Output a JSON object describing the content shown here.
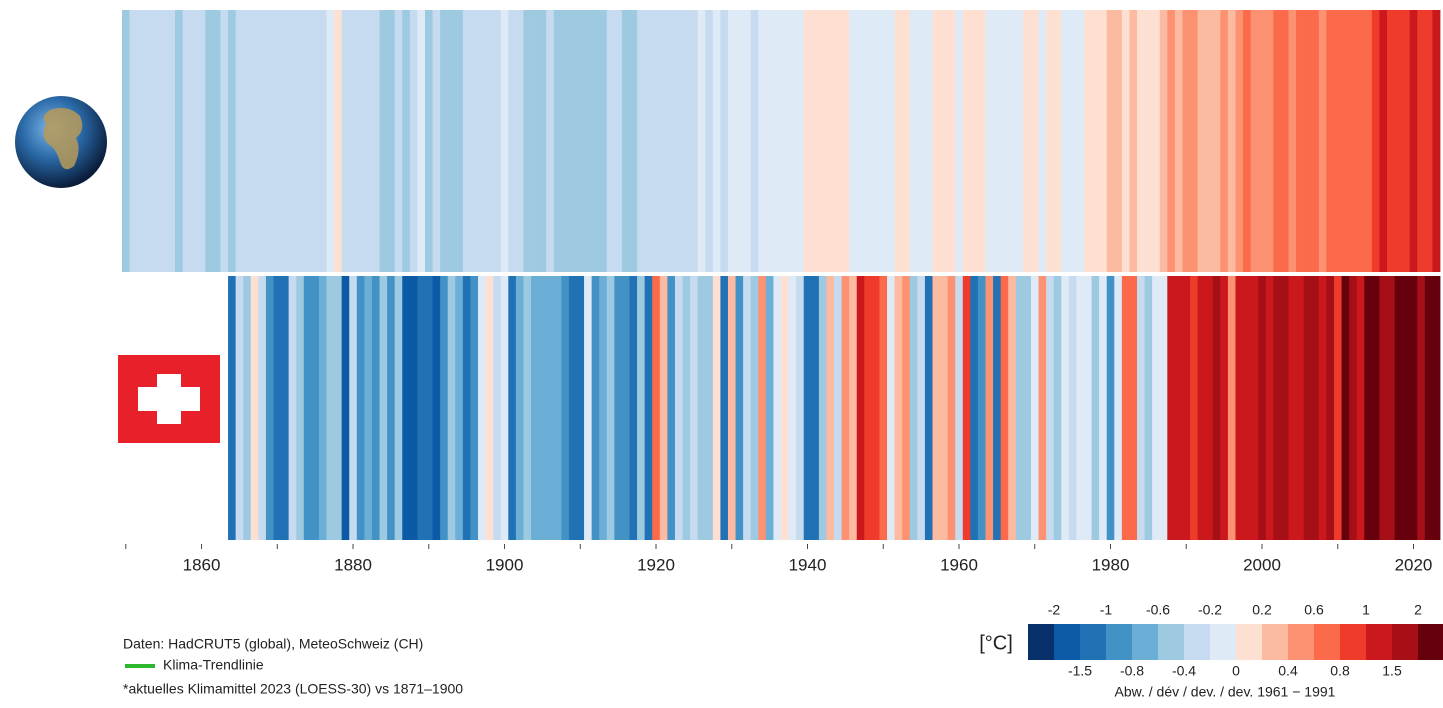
{
  "chart_data": {
    "type": "stripes",
    "xlim": [
      1849.5,
      2023.5
    ],
    "xticks": [
      1860,
      1880,
      1900,
      1920,
      1940,
      1960,
      1980,
      2000,
      2020
    ],
    "xminor_ticks": [
      1850,
      1870,
      1890,
      1910,
      1930,
      1950,
      1970,
      1990,
      2010
    ],
    "series": [
      {
        "x": [
          1850,
          1851,
          1852,
          1853,
          1854,
          1855,
          1856,
          1857,
          1858,
          1859,
          1860,
          1861,
          1862,
          1863,
          1864,
          1865,
          1866,
          1867,
          1868,
          1869,
          1870,
          1871,
          1872,
          1873,
          1874,
          1875,
          1876,
          1877,
          1878,
          1879,
          1880,
          1881,
          1882,
          1883,
          1884,
          1885,
          1886,
          1887,
          1888,
          1889,
          1890,
          1891,
          1892,
          1893,
          1894,
          1895,
          1896,
          1897,
          1898,
          1899,
          1900,
          1901,
          1902,
          1903,
          1904,
          1905,
          1906,
          1907,
          1908,
          1909,
          1910,
          1911,
          1912,
          1913,
          1914,
          1915,
          1916,
          1917,
          1918,
          1919,
          1920,
          1921,
          1922,
          1923,
          1924,
          1925,
          1926,
          1927,
          1928,
          1929,
          1930,
          1931,
          1932,
          1933,
          1934,
          1935,
          1936,
          1937,
          1938,
          1939,
          1940,
          1941,
          1942,
          1943,
          1944,
          1945,
          1946,
          1947,
          1948,
          1949,
          1950,
          1951,
          1952,
          1953,
          1954,
          1955,
          1956,
          1957,
          1958,
          1959,
          1960,
          1961,
          1962,
          1963,
          1964,
          1965,
          1966,
          1967,
          1968,
          1969,
          1970,
          1971,
          1972,
          1973,
          1974,
          1975,
          1976,
          1977,
          1978,
          1979,
          1980,
          1981,
          1982,
          1983,
          1984,
          1985,
          1986,
          1987,
          1988,
          1989,
          1990,
          1991,
          1992,
          1993,
          1994,
          1995,
          1996,
          1997,
          1998,
          1999,
          2000,
          2001,
          2002,
          2003,
          2004,
          2005,
          2006,
          2007,
          2008,
          2009,
          2010,
          2011,
          2012,
          2013,
          2014,
          2015,
          2016,
          2017,
          2018,
          2019,
          2020,
          2021,
          2022,
          2023
        ],
        "values": [
          -0.42,
          -0.28,
          -0.27,
          -0.29,
          -0.3,
          -0.29,
          -0.38,
          -0.48,
          -0.39,
          -0.32,
          -0.37,
          -0.42,
          -0.52,
          -0.34,
          -0.5,
          -0.32,
          -0.29,
          -0.31,
          -0.3,
          -0.29,
          -0.29,
          -0.33,
          -0.26,
          -0.29,
          -0.36,
          -0.4,
          -0.38,
          -0.09,
          0.02,
          -0.25,
          -0.28,
          -0.21,
          -0.25,
          -0.32,
          -0.42,
          -0.41,
          -0.38,
          -0.43,
          -0.31,
          -0.2,
          -0.43,
          -0.39,
          -0.47,
          -0.48,
          -0.43,
          -0.37,
          -0.22,
          -0.23,
          -0.4,
          -0.3,
          -0.2,
          -0.26,
          -0.38,
          -0.47,
          -0.55,
          -0.41,
          -0.34,
          -0.51,
          -0.55,
          -0.56,
          -0.53,
          -0.56,
          -0.5,
          -0.48,
          -0.29,
          -0.21,
          -0.43,
          -0.5,
          -0.38,
          -0.32,
          -0.32,
          -0.25,
          -0.33,
          -0.31,
          -0.31,
          -0.24,
          -0.12,
          -0.22,
          -0.2,
          -0.36,
          -0.16,
          -0.1,
          -0.15,
          -0.29,
          -0.14,
          -0.17,
          -0.14,
          -0.02,
          -0.01,
          -0.03,
          0.12,
          0.18,
          0.06,
          0.08,
          0.19,
          0.07,
          -0.05,
          -0.06,
          -0.06,
          -0.08,
          -0.17,
          -0.01,
          0.02,
          0.09,
          -0.12,
          -0.14,
          -0.2,
          0.05,
          0.07,
          0.03,
          -0.03,
          0.06,
          0.04,
          0.05,
          -0.2,
          -0.11,
          -0.06,
          -0.02,
          -0.08,
          0.05,
          0.03,
          -0.08,
          0.01,
          0.16,
          -0.07,
          -0.01,
          -0.1,
          0.18,
          0.07,
          0.17,
          0.26,
          0.32,
          0.14,
          0.31,
          0.16,
          0.12,
          0.18,
          0.33,
          0.4,
          0.27,
          0.46,
          0.41,
          0.22,
          0.24,
          0.32,
          0.45,
          0.33,
          0.52,
          0.63,
          0.44,
          0.42,
          0.55,
          0.63,
          0.62,
          0.54,
          0.68,
          0.64,
          0.65,
          0.54,
          0.66,
          0.76,
          0.64,
          0.68,
          0.71,
          0.77,
          0.92,
          1.01,
          0.92,
          0.83,
          0.98,
          1.01,
          0.85,
          0.89,
          1.1
        ]
      },
      {
        "x": [
          1864,
          1865,
          1866,
          1867,
          1868,
          1869,
          1870,
          1871,
          1872,
          1873,
          1874,
          1875,
          1876,
          1877,
          1878,
          1879,
          1880,
          1881,
          1882,
          1883,
          1884,
          1885,
          1886,
          1887,
          1888,
          1889,
          1890,
          1891,
          1892,
          1893,
          1894,
          1895,
          1896,
          1897,
          1898,
          1899,
          1900,
          1901,
          1902,
          1903,
          1904,
          1905,
          1906,
          1907,
          1908,
          1909,
          1910,
          1911,
          1912,
          1913,
          1914,
          1915,
          1916,
          1917,
          1918,
          1919,
          1920,
          1921,
          1922,
          1923,
          1924,
          1925,
          1926,
          1927,
          1928,
          1929,
          1930,
          1931,
          1932,
          1933,
          1934,
          1935,
          1936,
          1937,
          1938,
          1939,
          1940,
          1941,
          1942,
          1943,
          1944,
          1945,
          1946,
          1947,
          1948,
          1949,
          1950,
          1951,
          1952,
          1953,
          1954,
          1955,
          1956,
          1957,
          1958,
          1959,
          1960,
          1961,
          1962,
          1963,
          1964,
          1965,
          1966,
          1967,
          1968,
          1969,
          1970,
          1971,
          1972,
          1973,
          1974,
          1975,
          1976,
          1977,
          1978,
          1979,
          1980,
          1981,
          1982,
          1983,
          1984,
          1985,
          1986,
          1987,
          1988,
          1989,
          1990,
          1991,
          1992,
          1993,
          1994,
          1995,
          1996,
          1997,
          1998,
          1999,
          2000,
          2001,
          2002,
          2003,
          2004,
          2005,
          2006,
          2007,
          2008,
          2009,
          2010,
          2011,
          2012,
          2013,
          2014,
          2015,
          2016,
          2017,
          2018,
          2019,
          2020,
          2021,
          2022,
          2023
        ],
        "values": [
          -1.3,
          -0.3,
          -0.5,
          0.1,
          -0.4,
          -0.9,
          -1.4,
          -1.5,
          -0.3,
          -0.5,
          -0.9,
          -1.0,
          -0.7,
          -0.5,
          -0.6,
          -1.8,
          -0.4,
          -0.9,
          -0.7,
          -1.0,
          -0.5,
          -0.9,
          -0.6,
          -1.6,
          -1.8,
          -1.3,
          -1.2,
          -1.7,
          -0.9,
          -0.5,
          -0.8,
          -1.1,
          -0.9,
          -0.2,
          0.1,
          -0.3,
          -0.2,
          -1.2,
          -0.8,
          -0.6,
          -0.7,
          -0.8,
          -0.7,
          -0.8,
          -0.9,
          -1.3,
          -1.1,
          -0.2,
          -1.0,
          -0.7,
          -0.6,
          -0.9,
          -1.0,
          -1.1,
          -0.5,
          -1.3,
          0.6,
          0.3,
          -1.0,
          -0.3,
          -0.5,
          -0.3,
          -0.6,
          -0.5,
          0.1,
          -1.3,
          0.3,
          -0.9,
          -0.3,
          -0.6,
          0.5,
          -0.7,
          -0.1,
          0.1,
          -0.1,
          -0.3,
          -1.3,
          -1.2,
          -0.5,
          0.2,
          -0.4,
          0.5,
          0.2,
          1.1,
          0.9,
          0.8,
          0.6,
          -0.1,
          0.3,
          0.4,
          -0.5,
          -0.3,
          -1.3,
          0.2,
          0.2,
          0.5,
          -0.3,
          0.9,
          -1.1,
          -1.0,
          0.5,
          -1.2,
          0.6,
          0.2,
          -0.6,
          -0.5,
          -0.2,
          0.5,
          -0.3,
          -0.5,
          -0.1,
          -0.3,
          -0.2,
          -0.1,
          -0.6,
          -0.1,
          -0.9,
          -0.2,
          0.7,
          0.6,
          -0.3,
          -0.5,
          -0.1,
          -0.2,
          1.2,
          1.3,
          1.1,
          0.9,
          1.3,
          1.0,
          1.6,
          1.0,
          0.5,
          1.3,
          1.2,
          1.1,
          1.6,
          1.2,
          1.5,
          1.7,
          1.2,
          1.0,
          1.6,
          1.7,
          1.3,
          1.6,
          0.8,
          2.1,
          1.6,
          1.1,
          2.0,
          2.1,
          1.7,
          1.8,
          2.5,
          2.0,
          2.4,
          1.6,
          2.5,
          2.4
        ]
      }
    ],
    "colorbar": {
      "unit": "[°C]",
      "label": "Abw. / dév / dev. / dev. 1961 − 1991",
      "boundaries": [
        -2,
        -1.5,
        -1,
        -0.8,
        -0.6,
        -0.4,
        -0.2,
        0,
        0.2,
        0.4,
        0.6,
        0.8,
        1,
        1.5,
        2
      ],
      "colors": [
        "#08306b",
        "#0c59a6",
        "#2171b5",
        "#4292c6",
        "#6baed6",
        "#9ecae1",
        "#c6dbef",
        "#deebf7",
        "#fee0d2",
        "#fcbba1",
        "#fc9272",
        "#fb6a4a",
        "#ef3b2c",
        "#cb181d",
        "#a50f15",
        "#67000d"
      ]
    },
    "notes": [
      "Daten: HadCRUT5 (global), MeteoSchweiz (CH)",
      "Klima-Trendlinie",
      "*aktuelles Klimamittel 2023 (LOESS-30) vs 1871–1900"
    ],
    "trend_color": "#2db82d"
  }
}
